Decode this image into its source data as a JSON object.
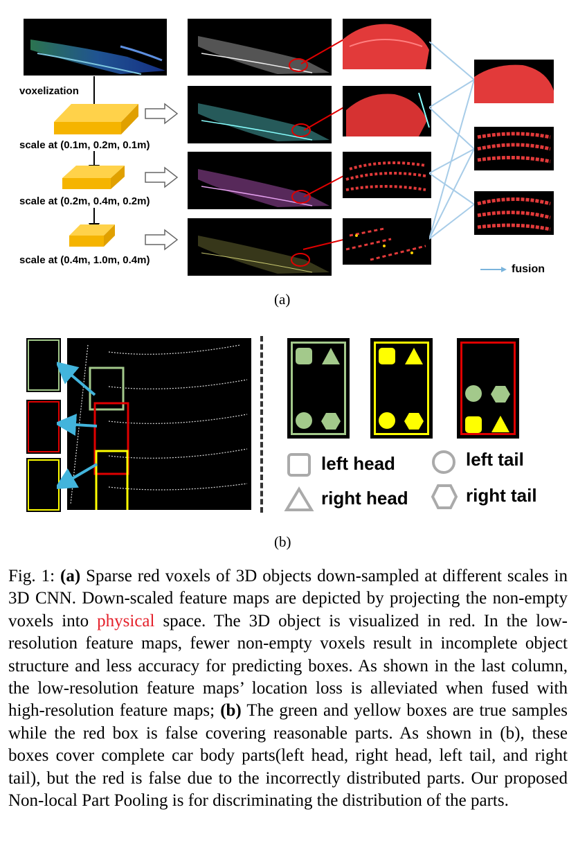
{
  "figure_a": {
    "voxelization_label": "voxelization",
    "scale_labels": [
      "scale at (0.1m, 0.2m, 0.1m)",
      "scale at (0.2m, 0.4m, 0.2m)",
      "scale at (0.4m, 1.0m, 0.4m)"
    ],
    "fusion_label": "fusion",
    "sublabel": "(a)"
  },
  "figure_b": {
    "legend": {
      "left_head": "left head",
      "left_tail": "left tail",
      "right_head": "right head",
      "right_tail": "right tail"
    },
    "sublabel": "(b)",
    "colors": {
      "green": "#a3c98b",
      "yellow": "#ffff00",
      "red": "#e00000",
      "cyan": "#42b4dc"
    }
  },
  "caption": {
    "fig": "Fig. 1:",
    "a_tag": "(a)",
    "part1": " Sparse red voxels of 3D objects down-sampled at different scales in 3D CNN. Down-scaled feature maps are depicted by projecting the non-empty voxels into ",
    "highlight": "physical",
    "part2": " space. The 3D object is visualized in red. In the low-resolution feature maps, fewer non-empty voxels result in incomplete object structure and less accuracy for predicting boxes. As shown in the last column, the low-resolution feature maps’ location loss is alleviated when fused with high-resolution feature maps; ",
    "b_tag": "(b)",
    "part3": " The green and yellow boxes are true samples while the red box is false covering reasonable parts. As shown in (b), these boxes cover complete car body parts(left head, right head, left tail, and right tail), but the red is false due to the incorrectly distributed parts. Our proposed Non-local Part Pooling is for discriminating the distribution of the parts."
  }
}
